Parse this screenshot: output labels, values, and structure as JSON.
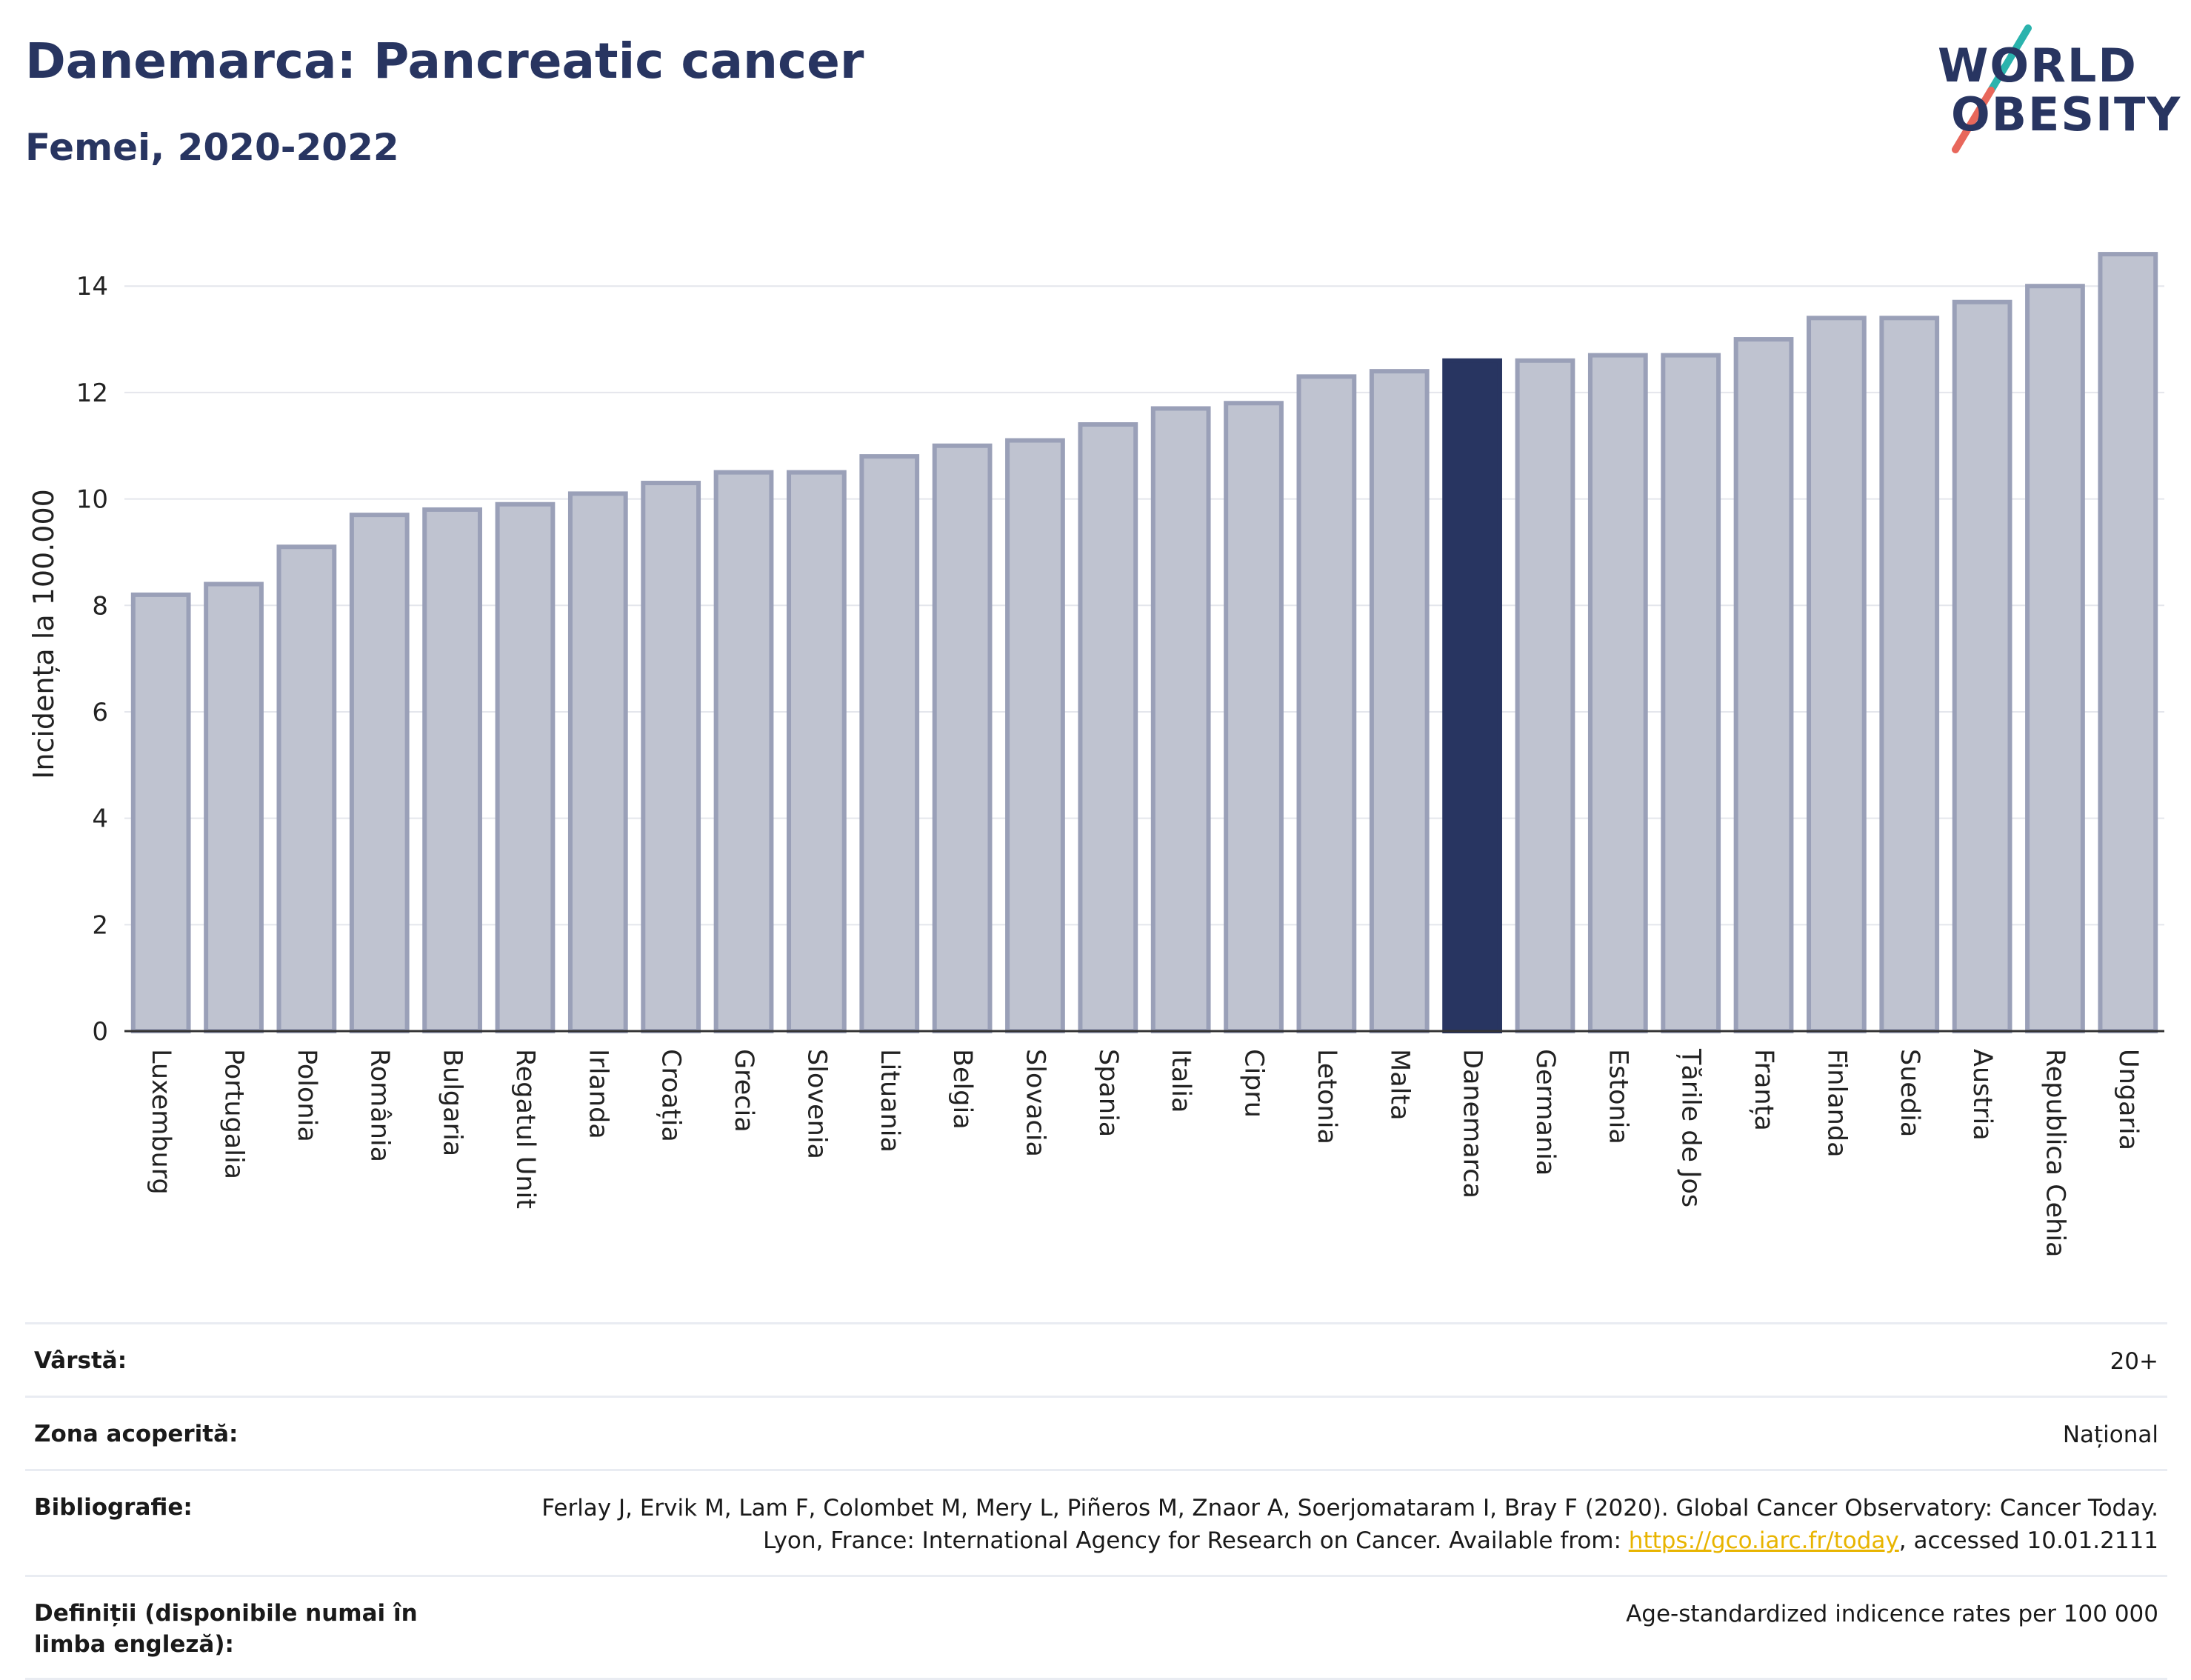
{
  "header": {
    "title": "Danemarca: Pancreatic cancer",
    "subtitle": "Femei, 2020-2022"
  },
  "logo": {
    "line1": "WORLD",
    "line2": "OBESITY",
    "colors": {
      "text": "#283561",
      "slash_top": "#2ab3ad",
      "slash_bottom": "#e8675b"
    }
  },
  "chart_data": {
    "type": "bar",
    "title": "Danemarca: Pancreatic cancer",
    "subtitle": "Femei, 2020-2022",
    "ylabel": "Incidența la 100.000",
    "xlabel": "",
    "ylim": [
      0,
      15.2
    ],
    "yticks": [
      0,
      2,
      4,
      6,
      8,
      10,
      12,
      14
    ],
    "grid": true,
    "highlight": "Danemarca",
    "colors": {
      "bar": "#bfc3d0",
      "bar_edge": "#9aa0b8",
      "highlight": "#283561",
      "grid": "#e4e6ec",
      "axis": "#333333"
    },
    "categories": [
      "Luxemburg",
      "Portugalia",
      "Polonia",
      "România",
      "Bulgaria",
      "Regatul Unit",
      "Irlanda",
      "Croația",
      "Grecia",
      "Slovenia",
      "Lituania",
      "Belgia",
      "Slovacia",
      "Spania",
      "Italia",
      "Cipru",
      "Letonia",
      "Malta",
      "Danemarca",
      "Germania",
      "Estonia",
      "Țările de Jos",
      "Franța",
      "Finlanda",
      "Suedia",
      "Austria",
      "Republica Cehia",
      "Ungaria"
    ],
    "values": [
      8.2,
      8.4,
      9.1,
      9.7,
      9.8,
      9.9,
      10.1,
      10.3,
      10.5,
      10.5,
      10.8,
      11.0,
      11.1,
      11.4,
      11.7,
      11.8,
      12.3,
      12.4,
      12.6,
      12.6,
      12.7,
      12.7,
      13.0,
      13.4,
      13.4,
      13.7,
      14.0,
      14.6
    ]
  },
  "info": {
    "rows": [
      {
        "label": "Vârstă:",
        "value": "20+"
      },
      {
        "label": "Zona acoperită:",
        "value": "Național"
      },
      {
        "label": "Bibliografie:",
        "value_pre": "Ferlay J, Ervik M, Lam F, Colombet M, Mery L, Piñeros M, Znaor A, Soerjomataram I, Bray F (2020). Global Cancer Observatory: Cancer Today. Lyon, France: International Agency for Research on Cancer. Available from: ",
        "link": "https://gco.iarc.fr/today",
        "value_post": ", accessed 10.01.2111"
      },
      {
        "label": "Definiții (disponibile numai în limba engleză):",
        "value": "Age-standardized indicence rates per 100 000"
      }
    ]
  }
}
